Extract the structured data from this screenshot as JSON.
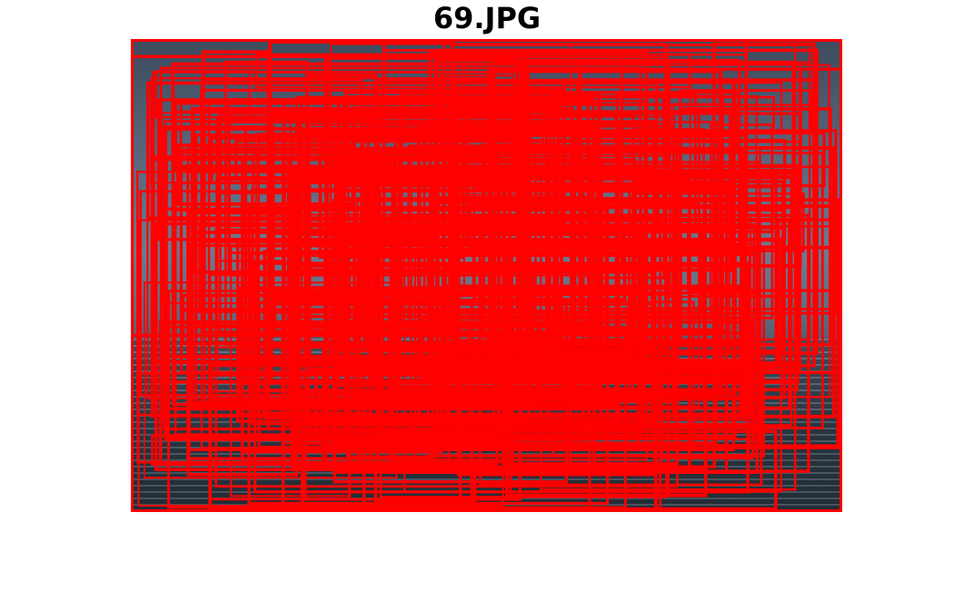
{
  "figure": {
    "title": "69.JPG"
  },
  "annotation": {
    "box_color": "#ff0000",
    "description_kind": "object detection proposals"
  }
}
